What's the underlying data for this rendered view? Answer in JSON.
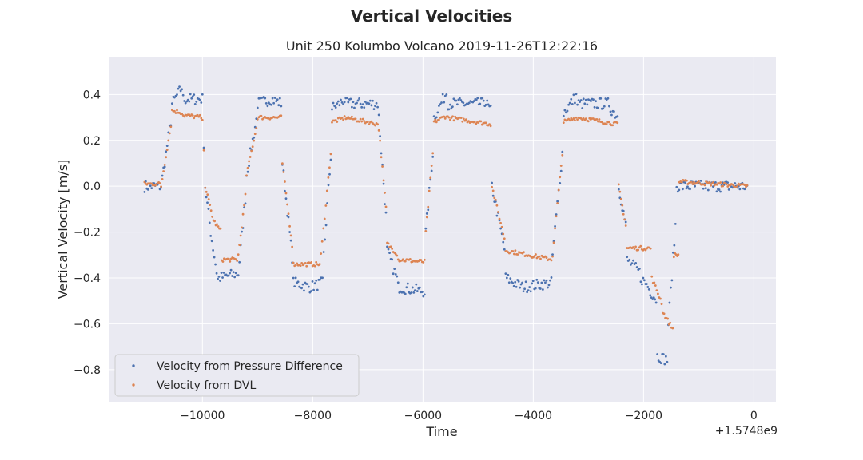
{
  "chart_data": {
    "type": "scatter",
    "suptitle": "Vertical Velocities",
    "title": "Unit 250 Kolumbo Volcano 2019-11-26T12:22:16",
    "xlabel": "Time",
    "ylabel": "Vertical Velocity [m/s]",
    "x_offset_label": "+1.5748e9",
    "xlim": [
      -11700,
      400
    ],
    "ylim": [
      -0.94,
      0.565
    ],
    "x_ticks": [
      -10000,
      -8000,
      -6000,
      -4000,
      -2000,
      0
    ],
    "x_tick_labels": [
      "−10000",
      "−8000",
      "−6000",
      "−4000",
      "−2000",
      "0"
    ],
    "y_ticks": [
      0.4,
      0.2,
      0.0,
      -0.2,
      -0.4,
      -0.6,
      -0.8
    ],
    "y_tick_labels": [
      "0.4",
      "0.2",
      "0.0",
      "−0.2",
      "−0.4",
      "−0.6",
      "−0.8"
    ],
    "grid": true,
    "legend_position": "lower-left",
    "background": "#eaeaf2",
    "series": [
      {
        "name": "Velocity from Pressure Difference",
        "color": "#4c72b0",
        "segments": [
          [
            -11050,
            -10750,
            0.0,
            0.0
          ],
          [
            -10750,
            -10550,
            0.0,
            0.32
          ],
          [
            -10550,
            -10350,
            0.36,
            0.44
          ],
          [
            -10350,
            -10000,
            0.38,
            0.38
          ],
          [
            -10000,
            -9950,
            0.38,
            0.0
          ],
          [
            -9950,
            -9850,
            0.0,
            -0.2
          ],
          [
            -9850,
            -9700,
            -0.2,
            -0.44
          ],
          [
            -9700,
            -9350,
            -0.4,
            -0.38
          ],
          [
            -9350,
            -9200,
            -0.38,
            0.0
          ],
          [
            -9200,
            -9000,
            0.05,
            0.32
          ],
          [
            -9000,
            -8750,
            0.36,
            0.38
          ],
          [
            -8750,
            -8550,
            0.38,
            0.36
          ],
          [
            -8550,
            -8350,
            0.1,
            -0.36
          ],
          [
            -8350,
            -8050,
            -0.42,
            -0.44
          ],
          [
            -8050,
            -7800,
            -0.44,
            -0.42
          ],
          [
            -7800,
            -7650,
            -0.3,
            0.2
          ],
          [
            -7650,
            -7400,
            0.34,
            0.38
          ],
          [
            -7400,
            -6800,
            0.36,
            0.36
          ],
          [
            -6800,
            -6650,
            0.3,
            -0.2
          ],
          [
            -6650,
            -6450,
            -0.28,
            -0.42
          ],
          [
            -6450,
            -5950,
            -0.44,
            -0.46
          ],
          [
            -5950,
            -5800,
            -0.2,
            0.2
          ],
          [
            -5800,
            -5550,
            0.3,
            0.42
          ],
          [
            -5550,
            -4900,
            0.36,
            0.36
          ],
          [
            -4900,
            -4750,
            0.38,
            0.32
          ],
          [
            -4750,
            -4500,
            0.0,
            -0.3
          ],
          [
            -4500,
            -4200,
            -0.4,
            -0.44
          ],
          [
            -4200,
            -3650,
            -0.44,
            -0.42
          ],
          [
            -3650,
            -3450,
            -0.3,
            0.2
          ],
          [
            -3450,
            -3200,
            0.32,
            0.4
          ],
          [
            -3200,
            -2600,
            0.36,
            0.36
          ],
          [
            -2600,
            -2450,
            0.34,
            0.3
          ],
          [
            -2450,
            -2300,
            0.0,
            -0.2
          ],
          [
            -2300,
            -2050,
            -0.32,
            -0.38
          ],
          [
            -2050,
            -1900,
            -0.4,
            -0.44
          ],
          [
            -1900,
            -1750,
            -0.45,
            -0.5
          ],
          [
            -1750,
            -1550,
            -0.74,
            -0.76
          ],
          [
            -1550,
            -1400,
            -0.6,
            -0.1
          ],
          [
            -1400,
            -100,
            0.0,
            0.0
          ]
        ]
      },
      {
        "name": "Velocity from DVL",
        "color": "#dd8452",
        "segments": [
          [
            -11050,
            -10750,
            0.01,
            0.01
          ],
          [
            -10750,
            -10550,
            0.0,
            0.3
          ],
          [
            -10550,
            -10350,
            0.33,
            0.32
          ],
          [
            -10350,
            -10000,
            0.31,
            0.3
          ],
          [
            -10000,
            -9950,
            0.28,
            0.05
          ],
          [
            -9950,
            -9800,
            0.0,
            -0.15
          ],
          [
            -9800,
            -9650,
            -0.15,
            -0.2
          ],
          [
            -9650,
            -9350,
            -0.32,
            -0.32
          ],
          [
            -9350,
            -9200,
            -0.3,
            0.0
          ],
          [
            -9200,
            -9000,
            0.05,
            0.28
          ],
          [
            -9000,
            -8550,
            0.3,
            0.3
          ],
          [
            -8550,
            -8350,
            0.1,
            -0.3
          ],
          [
            -8350,
            -7850,
            -0.34,
            -0.34
          ],
          [
            -7850,
            -7650,
            -0.3,
            0.2
          ],
          [
            -7650,
            -7400,
            0.28,
            0.3
          ],
          [
            -7400,
            -6800,
            0.3,
            0.27
          ],
          [
            -6800,
            -6650,
            0.25,
            -0.15
          ],
          [
            -6650,
            -6450,
            -0.25,
            -0.3
          ],
          [
            -6450,
            -5950,
            -0.32,
            -0.33
          ],
          [
            -5950,
            -5800,
            -0.2,
            0.2
          ],
          [
            -5800,
            -5550,
            0.28,
            0.31
          ],
          [
            -5550,
            -4750,
            0.3,
            0.27
          ],
          [
            -4750,
            -4500,
            0.0,
            -0.25
          ],
          [
            -4500,
            -3650,
            -0.28,
            -0.32
          ],
          [
            -3650,
            -3450,
            -0.3,
            0.2
          ],
          [
            -3450,
            -3200,
            0.28,
            0.3
          ],
          [
            -3200,
            -2450,
            0.3,
            0.27
          ],
          [
            -2450,
            -2300,
            0.0,
            -0.2
          ],
          [
            -2300,
            -1850,
            -0.27,
            -0.27
          ],
          [
            -1850,
            -1650,
            -0.4,
            -0.52
          ],
          [
            -1650,
            -1450,
            -0.55,
            -0.63
          ],
          [
            -1450,
            -1350,
            -0.3,
            -0.3
          ],
          [
            -1350,
            -100,
            0.02,
            0.0
          ]
        ]
      }
    ]
  }
}
